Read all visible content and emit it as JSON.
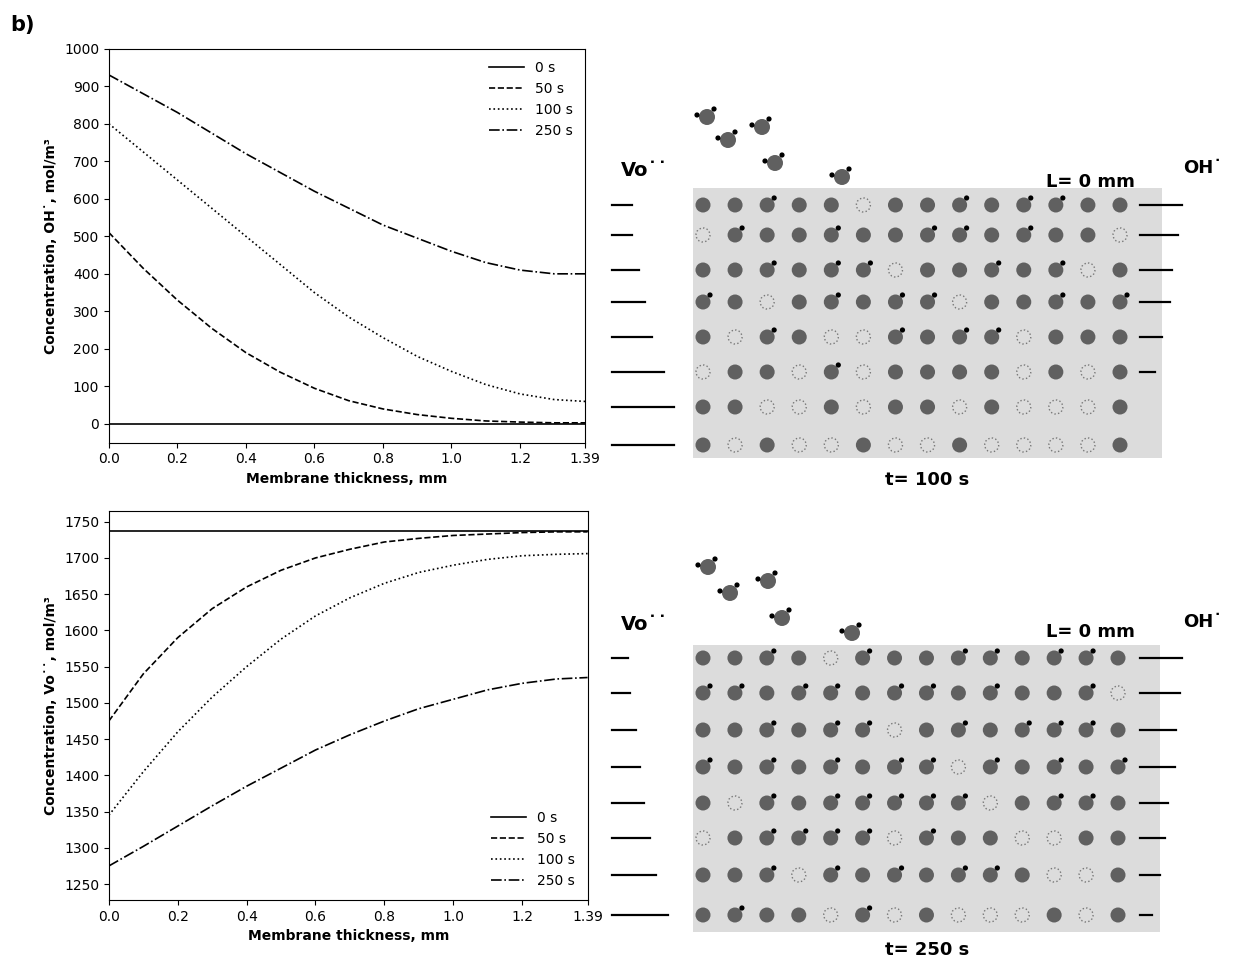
{
  "panel_label": "b)",
  "chart_data": [
    {
      "type": "line",
      "x_label": "Membrane thickness, mm",
      "y_label": "Concentration, OH˙, mol/m³",
      "x": [
        0,
        0.1,
        0.2,
        0.3,
        0.4,
        0.5,
        0.6,
        0.7,
        0.8,
        0.9,
        1.0,
        1.1,
        1.2,
        1.3,
        1.39
      ],
      "series": [
        {
          "name": "0 s",
          "color": "#000000",
          "line_style": "solid",
          "values": [
            0,
            0,
            0,
            0,
            0,
            0,
            0,
            0,
            0,
            0,
            0,
            0,
            0,
            0,
            0
          ]
        },
        {
          "name": "50 s",
          "color": "#000000",
          "line_style": "dashed",
          "values": [
            510,
            415,
            330,
            255,
            190,
            138,
            95,
            62,
            40,
            25,
            15,
            8,
            5,
            3,
            3
          ]
        },
        {
          "name": "100 s",
          "color": "#000000",
          "line_style": "dotted",
          "values": [
            800,
            725,
            650,
            575,
            500,
            425,
            350,
            285,
            230,
            180,
            140,
            105,
            80,
            65,
            60
          ]
        },
        {
          "name": "250 s",
          "color": "#000000",
          "line_style": "dashdot",
          "values": [
            930,
            880,
            830,
            775,
            720,
            670,
            620,
            575,
            530,
            495,
            460,
            430,
            410,
            400,
            400
          ]
        }
      ],
      "xlim": [
        0,
        1.39
      ],
      "xticks": [
        {
          "value": 0,
          "label": "0.0"
        },
        {
          "value": 0.2,
          "label": "0.2"
        },
        {
          "value": 0.4,
          "label": "0.4"
        },
        {
          "value": 0.6,
          "label": "0.6"
        },
        {
          "value": 0.8,
          "label": "0.8"
        },
        {
          "value": 1.0,
          "label": "1.0"
        },
        {
          "value": 1.2,
          "label": "1.2"
        },
        1.39
      ],
      "ylim": [
        -50,
        1000
      ],
      "yticks": [
        0,
        100,
        200,
        300,
        400,
        500,
        600,
        700,
        800,
        900,
        1000
      ],
      "legend": "upper right"
    },
    {
      "type": "line",
      "x_label": "Membrane thickness, mm",
      "y_label": "Concentration, Vo˙˙, mol/m³",
      "x": [
        0,
        0.1,
        0.2,
        0.3,
        0.4,
        0.5,
        0.6,
        0.7,
        0.8,
        0.9,
        1.0,
        1.1,
        1.2,
        1.3,
        1.39
      ],
      "series": [
        {
          "name": "0 s",
          "color": "#000000",
          "line_style": "solid",
          "values": [
            1737,
            1737,
            1737,
            1737,
            1737,
            1737,
            1737,
            1737,
            1737,
            1737,
            1737,
            1737,
            1737,
            1737,
            1737
          ]
        },
        {
          "name": "50 s",
          "color": "#000000",
          "line_style": "dashed",
          "values": [
            1475,
            1540,
            1590,
            1630,
            1660,
            1683,
            1700,
            1712,
            1722,
            1727,
            1731,
            1733,
            1735,
            1736,
            1736
          ]
        },
        {
          "name": "100 s",
          "color": "#000000",
          "line_style": "dotted",
          "values": [
            1345,
            1405,
            1460,
            1508,
            1550,
            1588,
            1620,
            1645,
            1665,
            1680,
            1690,
            1698,
            1703,
            1705,
            1706
          ]
        },
        {
          "name": "250 s",
          "color": "#000000",
          "line_style": "dashdot",
          "values": [
            1275,
            1302,
            1330,
            1358,
            1385,
            1410,
            1435,
            1456,
            1475,
            1492,
            1505,
            1518,
            1527,
            1533,
            1535
          ]
        }
      ],
      "xlim": [
        0,
        1.39
      ],
      "xticks": [
        {
          "value": 0,
          "label": "0.0"
        },
        {
          "value": 0.2,
          "label": "0.2"
        },
        {
          "value": 0.4,
          "label": "0.4"
        },
        {
          "value": 0.6,
          "label": "0.6"
        },
        {
          "value": 0.8,
          "label": "0.8"
        },
        {
          "value": 1.0,
          "label": "1.0"
        },
        {
          "value": 1.2,
          "label": "1.2"
        },
        1.39
      ],
      "ylim": [
        1228,
        1765
      ],
      "yticks": [
        1250,
        1300,
        1350,
        1400,
        1450,
        1500,
        1550,
        1600,
        1650,
        1700,
        1750
      ],
      "legend": "lower right"
    }
  ],
  "schematics": [
    {
      "left_label": "Vo˙˙",
      "right_label": "OH˙",
      "depth_label": "L= 0 mm",
      "time_label": "t= 100 s"
    },
    {
      "left_label": "Vo˙˙",
      "right_label": "OH˙",
      "depth_label": "L= 0 mm",
      "time_label": "t= 250 s"
    }
  ]
}
